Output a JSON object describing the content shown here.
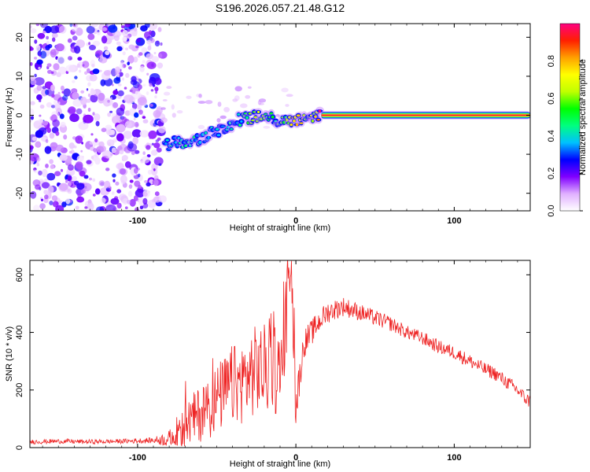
{
  "chart_data": [
    {
      "type": "heatmap",
      "title": "S196.2026.057.21.48.G12",
      "xlabel": "Height of straight line (km)",
      "ylabel": "Frequency (Hz)",
      "xlim": [
        -168,
        148
      ],
      "ylim": [
        -24.5,
        23.5
      ],
      "xticks": [
        -100,
        0,
        100
      ],
      "xtick_labels": [
        "-100",
        "0",
        "100"
      ],
      "yticks": [
        -20,
        -10,
        0,
        10,
        20
      ],
      "ytick_labels": [
        "-20",
        "-10",
        "0",
        "10",
        "20"
      ],
      "colorbar": {
        "label": "Normalized spectral amplitude",
        "range": [
          0,
          1
        ],
        "ticks": [
          0.0,
          0.2,
          0.4,
          0.6,
          0.8
        ],
        "tick_labels": [
          "0.0",
          "0.2",
          "0.4",
          "0.6",
          "0.8"
        ],
        "colors": [
          "#ffffff",
          "#e0b0ff",
          "#8000ff",
          "#0000ff",
          "#00c0ff",
          "#00ff80",
          "#00ff00",
          "#c0ff00",
          "#ffff00",
          "#ffa000",
          "#ff2000",
          "#ff0080"
        ]
      },
      "noise_region": {
        "x_from": -168,
        "x_to": -84,
        "freq_range": [
          -24.5,
          23.5
        ],
        "amplitude": "0.0-0.25"
      },
      "signal_track": [
        {
          "x": -83,
          "freq": -7.5,
          "amplitude": 0.35
        },
        {
          "x": -75,
          "freq": -7.0,
          "amplitude": 0.4
        },
        {
          "x": -65,
          "freq": -6.5,
          "amplitude": 0.4
        },
        {
          "x": -55,
          "freq": -5.0,
          "amplitude": 0.35
        },
        {
          "x": -45,
          "freq": -3.0,
          "amplitude": 0.35
        },
        {
          "x": -35,
          "freq": -1.0,
          "amplitude": 0.4
        },
        {
          "x": -25,
          "freq": -0.5,
          "amplitude": 0.6
        },
        {
          "x": -12,
          "freq": -1.0,
          "amplitude": 0.5
        },
        {
          "x": 0,
          "freq": -1.5,
          "amplitude": 0.7
        },
        {
          "x": 10,
          "freq": -0.5,
          "amplitude": 0.6
        },
        {
          "x": 16,
          "freq": 0.0,
          "amplitude": 0.9
        },
        {
          "x": 148,
          "freq": 0.0,
          "amplitude": 0.9
        }
      ]
    },
    {
      "type": "line",
      "title": "",
      "xlabel": "Height of straight line (km)",
      "ylabel": "SNR (10 * v/v)",
      "xlim": [
        -168,
        148
      ],
      "ylim": [
        0,
        650
      ],
      "xticks": [
        -100,
        0,
        100
      ],
      "xtick_labels": [
        "-100",
        "0",
        "100"
      ],
      "yticks": [
        0,
        200,
        400,
        600
      ],
      "ytick_labels": [
        "0",
        "200",
        "400",
        "600"
      ],
      "color": "#ee2222",
      "series": [
        {
          "name": "SNR",
          "x": [
            -168,
            -150,
            -130,
            -110,
            -90,
            -80,
            -75,
            -70,
            -65,
            -60,
            -55,
            -50,
            -45,
            -40,
            -35,
            -30,
            -25,
            -20,
            -15,
            -10,
            -7,
            -5,
            -3,
            -1,
            0,
            2,
            5,
            10,
            15,
            20,
            25,
            30,
            35,
            40,
            50,
            60,
            70,
            80,
            90,
            100,
            110,
            120,
            125,
            130,
            135,
            140,
            145,
            148
          ],
          "values": [
            20,
            22,
            20,
            22,
            25,
            30,
            50,
            80,
            100,
            120,
            140,
            170,
            190,
            220,
            220,
            250,
            270,
            270,
            290,
            250,
            380,
            560,
            640,
            300,
            140,
            230,
            360,
            400,
            440,
            470,
            480,
            490,
            480,
            470,
            450,
            430,
            400,
            380,
            350,
            330,
            300,
            270,
            260,
            240,
            220,
            200,
            170,
            160
          ],
          "noise": [
            8,
            8,
            8,
            8,
            10,
            30,
            60,
            80,
            90,
            100,
            110,
            120,
            130,
            140,
            140,
            150,
            160,
            160,
            170,
            150,
            200,
            100,
            40,
            120,
            80,
            60,
            50,
            45,
            40,
            38,
            36,
            34,
            32,
            30,
            28,
            26,
            24,
            24,
            24,
            24,
            24,
            24,
            24,
            24,
            24,
            24,
            24,
            24
          ]
        }
      ]
    }
  ]
}
